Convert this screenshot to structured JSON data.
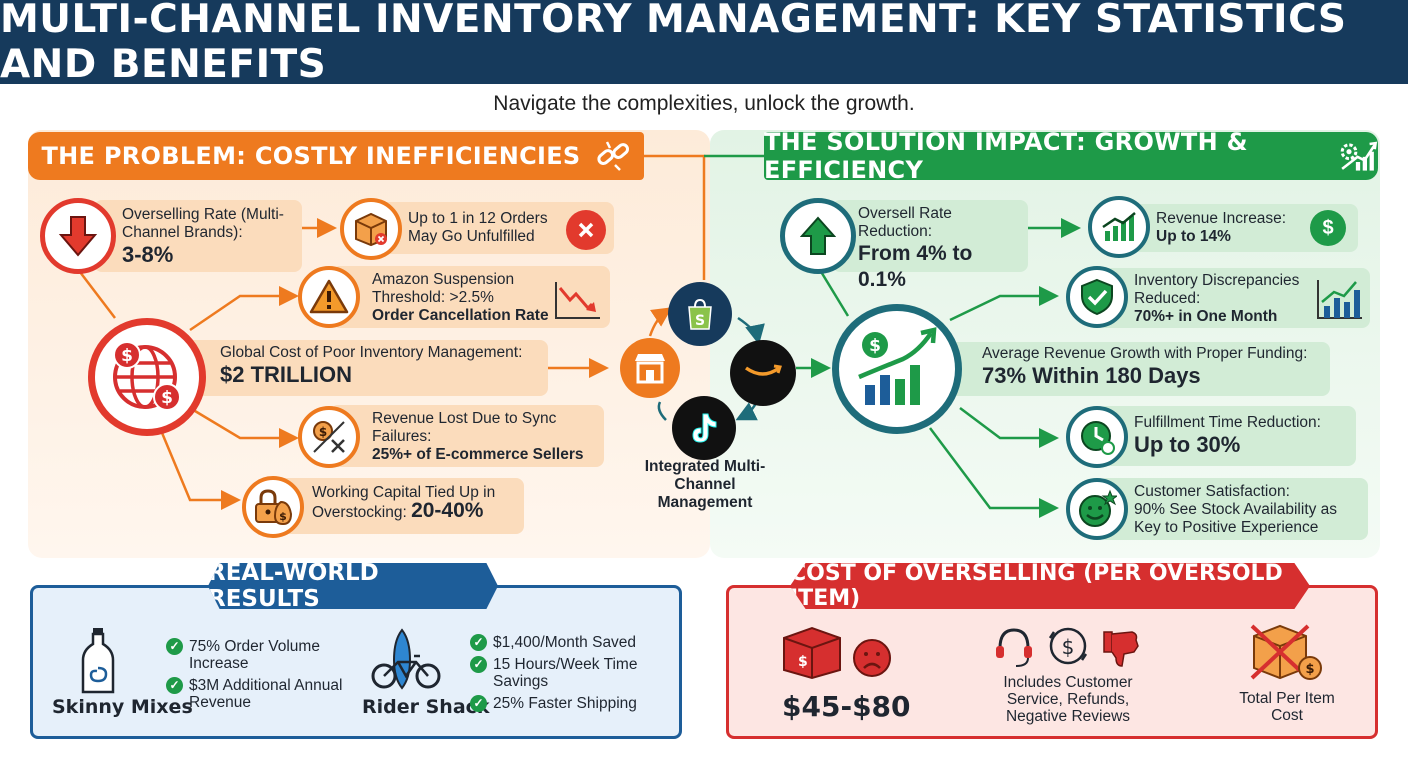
{
  "title": "MULTI-CHANNEL INVENTORY MANAGEMENT: KEY STATISTICS AND BENEFITS",
  "subtitle": "Navigate the complexities, unlock the growth.",
  "problem": {
    "banner": "THE PROBLEM: COSTLY INEFFICIENCIES",
    "overselling": {
      "label": "Overselling Rate (Multi-Channel Brands):",
      "value": "3-8%"
    },
    "unfulfilled": {
      "line1": "Up to 1 in 12 Orders",
      "line2": "May Go Unfulfilled"
    },
    "amazon": {
      "line1": "Amazon Suspension",
      "line2": "Threshold: >2.5%",
      "line3": "Order Cancellation Rate"
    },
    "global": {
      "label": "Global Cost of Poor Inventory Management:",
      "value": "$2 TRILLION"
    },
    "revenue_lost": {
      "line1": "Revenue Lost Due to Sync",
      "line2": "Failures:",
      "line3": "25%+ of E-commerce Sellers"
    },
    "working_capital": {
      "line1": "Working Capital Tied Up in",
      "line2": "Overstocking:",
      "value": "20-40%"
    }
  },
  "center": {
    "label": "Integrated Multi-Channel Management"
  },
  "solution": {
    "banner": "THE SOLUTION IMPACT: GROWTH & EFFICIENCY",
    "oversell_reduction": {
      "line1": "Oversell Rate",
      "line2": "Reduction:",
      "value": "From 4% to 0.1%"
    },
    "revenue_increase": {
      "line1": "Revenue Increase:",
      "line2": "Up to 14%"
    },
    "discrepancies": {
      "line1": "Inventory Discrepancies",
      "line2": "Reduced:",
      "line3": "70%+ in One Month"
    },
    "avg_growth": {
      "label": "Average Revenue Growth with Proper Funding:",
      "value": "73% Within 180 Days"
    },
    "fulfillment": {
      "label": "Fulfillment Time Reduction:",
      "value": "Up to 30%"
    },
    "satisfaction": {
      "line1": "Customer Satisfaction:",
      "line2": "90% See Stock Availability as",
      "line3": "Key to Positive Experience"
    }
  },
  "results": {
    "banner": "REAL-WORLD RESULTS",
    "skinny": {
      "name": "Skinny Mixes",
      "items": [
        "75% Order Volume Increase",
        "$3M Additional Annual Revenue"
      ]
    },
    "rider": {
      "name": "Rider Shack",
      "items": [
        "$1,400/Month Saved",
        "15 Hours/Week Time Savings",
        "25% Faster Shipping"
      ]
    }
  },
  "cost": {
    "banner": "COST OF OVERSELLING (PER OVERSOLD ITEM)",
    "value": "$45-$80",
    "includes": "Includes Customer Service, Refunds, Negative Reviews",
    "total": "Total Per Item Cost"
  },
  "colors": {
    "navy": "#163a5c",
    "orange": "#ee7a1f",
    "green": "#1e9a48",
    "blue": "#1d5d99",
    "red": "#d62f2f"
  }
}
